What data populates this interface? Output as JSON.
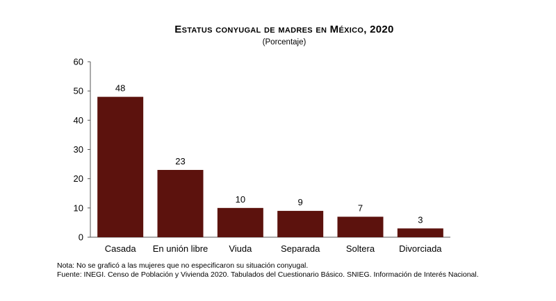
{
  "chart_data": {
    "type": "bar",
    "title": "Estatus conyugal de madres en México, 2020",
    "subtitle": "(Porcentaje)",
    "categories": [
      "Casada",
      "En unión libre",
      "Viuda",
      "Separada",
      "Soltera",
      "Divorciada"
    ],
    "values": [
      48,
      23,
      10,
      9,
      7,
      3
    ],
    "data_labels": [
      "48",
      "23",
      "10",
      "9",
      "7",
      "3"
    ],
    "xlabel": "",
    "ylabel": "",
    "ylim": [
      0,
      60
    ],
    "yticks": [
      0,
      10,
      20,
      30,
      40,
      50,
      60
    ],
    "grid": false,
    "legend": "none",
    "bar_color": "#5c120d"
  },
  "notes": {
    "nota_prefix": "Nota:",
    "nota_text": "No se graficó a las mujeres que no especificaron su situación conyugal.",
    "fuente_prefix": "Fuente:",
    "fuente_text": "INEGI. Censo de Población y Vivienda 2020. Tabulados del Cuestionario Básico. SNIEG. Información de Interés Nacional."
  }
}
